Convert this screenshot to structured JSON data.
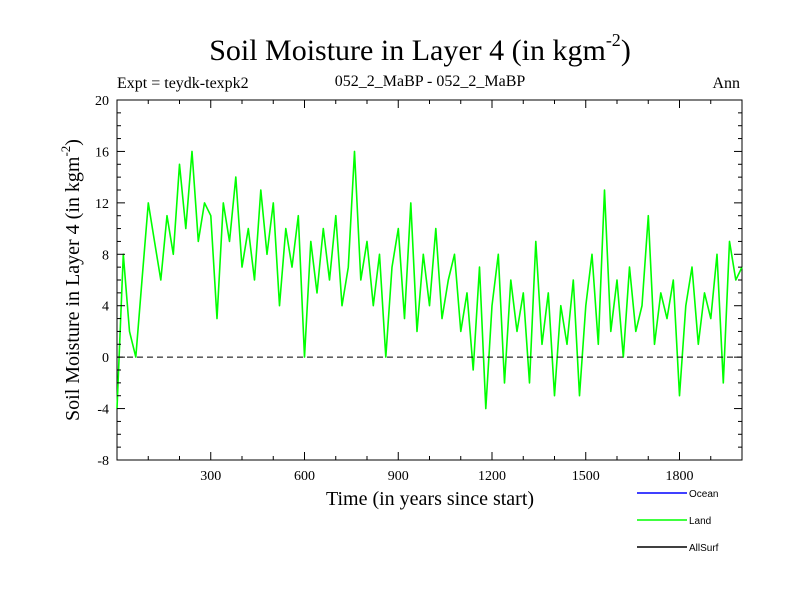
{
  "chart_data": {
    "type": "line",
    "title": "Soil Moisture in Layer 4 (in kgm",
    "title_superscript": "-2",
    "title_close": ")",
    "subtitle_left": "Expt = teydk-texpk2",
    "subtitle_center": "052_2_MaBP - 052_2_MaBP",
    "subtitle_right": "Ann",
    "xlabel": "Time (in years since start)",
    "ylabel": "Soil Moisture in Layer 4 (in kgm",
    "ylabel_superscript": "-2",
    "ylabel_close": ")",
    "xlim": [
      0,
      2000
    ],
    "ylim": [
      -8,
      20
    ],
    "x_ticks": [
      300,
      600,
      900,
      1200,
      1500,
      1800
    ],
    "x_tick_labels": [
      "300",
      "600",
      "900",
      "1200",
      "1500",
      "1800"
    ],
    "y_ticks": [
      -8,
      -4,
      0,
      4,
      8,
      12,
      16,
      20
    ],
    "y_tick_labels": [
      "-8",
      "-4",
      "0",
      "4",
      "8",
      "12",
      "16",
      "20"
    ],
    "reference_line": 0,
    "series": [
      {
        "name": "Ocean",
        "color": "#0000ff",
        "x": [],
        "values": []
      },
      {
        "name": "Land",
        "color": "#00ff00",
        "x": [
          0,
          20,
          40,
          60,
          80,
          100,
          120,
          140,
          160,
          180,
          200,
          220,
          240,
          260,
          280,
          300,
          320,
          340,
          360,
          380,
          400,
          420,
          440,
          460,
          480,
          500,
          520,
          540,
          560,
          580,
          600,
          620,
          640,
          660,
          680,
          700,
          720,
          740,
          760,
          780,
          800,
          820,
          840,
          860,
          880,
          900,
          920,
          940,
          960,
          980,
          1000,
          1020,
          1040,
          1060,
          1080,
          1100,
          1120,
          1140,
          1160,
          1180,
          1200,
          1220,
          1240,
          1260,
          1280,
          1300,
          1320,
          1340,
          1360,
          1380,
          1400,
          1420,
          1440,
          1460,
          1480,
          1500,
          1520,
          1540,
          1560,
          1580,
          1600,
          1620,
          1640,
          1660,
          1680,
          1700,
          1720,
          1740,
          1760,
          1780,
          1800,
          1820,
          1840,
          1860,
          1880,
          1900,
          1920,
          1940,
          1960,
          1980,
          2000
        ],
        "values": [
          -4,
          8,
          2,
          0,
          6,
          12,
          9,
          6,
          11,
          8,
          15,
          10,
          16,
          9,
          12,
          11,
          3,
          12,
          9,
          14,
          7,
          10,
          6,
          13,
          8,
          12,
          4,
          10,
          7,
          11,
          0,
          9,
          5,
          10,
          6,
          11,
          4,
          7,
          16,
          6,
          9,
          4,
          8,
          0,
          7,
          10,
          3,
          12,
          2,
          8,
          4,
          10,
          3,
          6,
          8,
          2,
          5,
          -1,
          7,
          -4,
          4,
          8,
          -2,
          6,
          2,
          5,
          -2,
          9,
          1,
          5,
          -3,
          4,
          1,
          6,
          -3,
          4,
          8,
          1,
          13,
          2,
          6,
          0,
          7,
          2,
          4,
          11,
          1,
          5,
          3,
          6,
          -3,
          4,
          7,
          1,
          5,
          3,
          8,
          -2,
          9,
          6,
          7
        ]
      },
      {
        "name": "AllSurf",
        "color": "#000000",
        "x": [],
        "values": []
      }
    ]
  }
}
